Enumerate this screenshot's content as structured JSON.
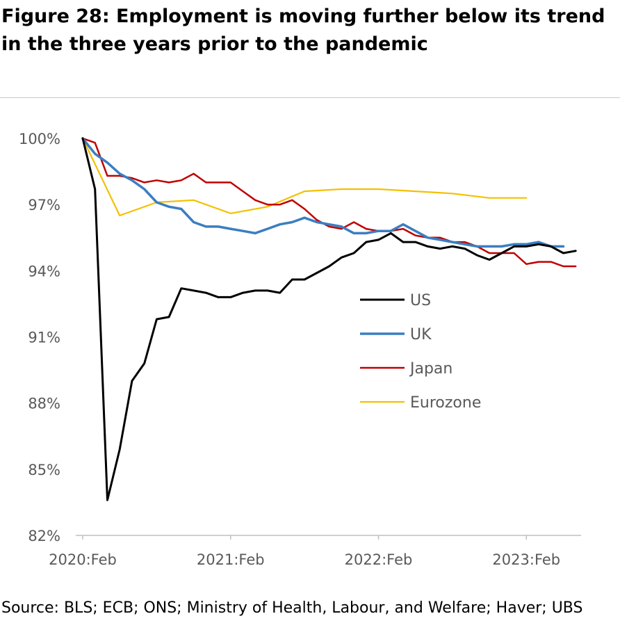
{
  "title": "Figure 28: Employment is moving further below its trend in the three years prior to the pandemic",
  "source": "Source: BLS; ECB; ONS; Ministry of Health, Labour, and Welfare; Haver; UBS",
  "chart_data": {
    "type": "line",
    "title": "Figure 28: Employment is moving further below its trend in the three years prior to the pandemic",
    "xlabel": "",
    "ylabel": "",
    "ylim": [
      82,
      100
    ],
    "y_ticks": [
      "100%",
      "97%",
      "94%",
      "91%",
      "88%",
      "85%",
      "82%"
    ],
    "y_tick_values": [
      100,
      97,
      94,
      91,
      88,
      85,
      82
    ],
    "x_tick_labels": [
      "2020:Feb",
      "2021:Feb",
      "2022:Feb",
      "2023:Feb"
    ],
    "x_tick_months": [
      0,
      12,
      24,
      36
    ],
    "x_range_months": [
      0,
      40.5
    ],
    "grid": false,
    "legend_position": "center-right",
    "series": [
      {
        "name": "US",
        "color": "#000000",
        "x": [
          0,
          1,
          2,
          3,
          4,
          5,
          6,
          7,
          8,
          9,
          10,
          11,
          12,
          13,
          14,
          15,
          16,
          17,
          18,
          19,
          20,
          21,
          22,
          23,
          24,
          25,
          26,
          27,
          28,
          29,
          30,
          31,
          32,
          33,
          34,
          35,
          36,
          37,
          38,
          39,
          40
        ],
        "values": [
          100,
          97.7,
          83.6,
          85.9,
          89.0,
          89.8,
          91.8,
          91.9,
          93.2,
          93.1,
          93.0,
          92.8,
          92.8,
          93.0,
          93.1,
          93.1,
          93.0,
          93.6,
          93.6,
          93.9,
          94.2,
          94.6,
          94.8,
          95.3,
          95.4,
          95.7,
          95.3,
          95.3,
          95.1,
          95.0,
          95.1,
          95.0,
          94.7,
          94.5,
          94.8,
          95.1,
          95.1,
          95.2,
          95.1,
          94.8,
          94.9
        ]
      },
      {
        "name": "UK",
        "color": "#3a7ec1",
        "x": [
          0,
          1,
          2,
          3,
          4,
          5,
          6,
          7,
          8,
          9,
          10,
          11,
          12,
          13,
          14,
          15,
          16,
          17,
          18,
          19,
          20,
          21,
          22,
          23,
          24,
          25,
          26,
          27,
          28,
          29,
          30,
          31,
          32,
          33,
          34,
          35,
          36,
          37,
          38,
          39
        ],
        "values": [
          100,
          99.3,
          98.9,
          98.4,
          98.1,
          97.7,
          97.1,
          96.9,
          96.8,
          96.2,
          96.0,
          96.0,
          95.9,
          95.8,
          95.7,
          95.9,
          96.1,
          96.2,
          96.4,
          96.2,
          96.1,
          96.0,
          95.7,
          95.7,
          95.8,
          95.8,
          96.1,
          95.8,
          95.5,
          95.4,
          95.3,
          95.2,
          95.1,
          95.1,
          95.1,
          95.2,
          95.2,
          95.3,
          95.1,
          95.1
        ]
      },
      {
        "name": "Japan",
        "color": "#c00000",
        "x": [
          0,
          1,
          2,
          3,
          4,
          5,
          6,
          7,
          8,
          9,
          10,
          11,
          12,
          13,
          14,
          15,
          16,
          17,
          18,
          19,
          20,
          21,
          22,
          23,
          24,
          25,
          26,
          27,
          28,
          29,
          30,
          31,
          32,
          33,
          34,
          35,
          36,
          37,
          38,
          39,
          40
        ],
        "values": [
          100,
          99.8,
          98.3,
          98.3,
          98.2,
          98.0,
          98.1,
          98.0,
          98.1,
          98.4,
          98.0,
          98.0,
          98.0,
          97.6,
          97.2,
          97.0,
          97.0,
          97.2,
          96.8,
          96.3,
          96.0,
          95.9,
          96.2,
          95.9,
          95.8,
          95.8,
          95.9,
          95.6,
          95.5,
          95.5,
          95.3,
          95.3,
          95.1,
          94.8,
          94.8,
          94.8,
          94.3,
          94.4,
          94.4,
          94.2,
          94.2
        ]
      },
      {
        "name": "Eurozone",
        "color": "#f5c000",
        "x": [
          0,
          3,
          6,
          9,
          12,
          15,
          18,
          21,
          24,
          27,
          30,
          33,
          36
        ],
        "values": [
          100,
          96.5,
          97.1,
          97.2,
          96.6,
          96.9,
          97.6,
          97.7,
          97.7,
          97.6,
          97.5,
          97.3,
          97.3
        ]
      }
    ]
  }
}
